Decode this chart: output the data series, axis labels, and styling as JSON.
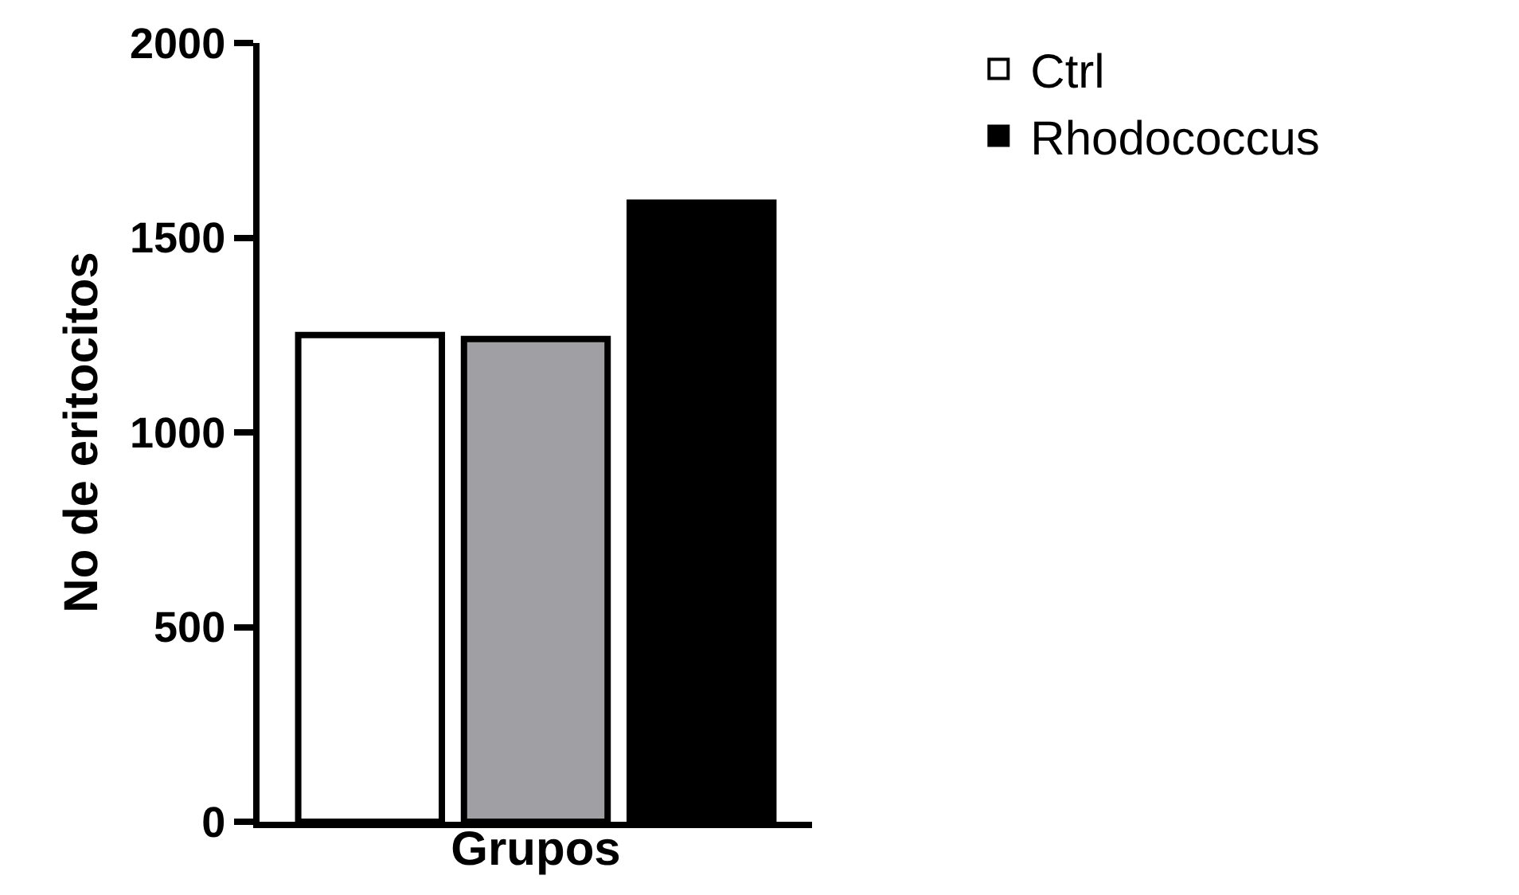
{
  "chart_data": {
    "type": "bar",
    "xlabel": "Grupos",
    "ylabel": "No de eritocitos",
    "categories": [
      null
    ],
    "series": [
      {
        "name": "Ctrl",
        "color": "#ffffff",
        "values": [
          1250
        ]
      },
      {
        "color": "#a0a0a4",
        "values": [
          1240
        ]
      },
      {
        "name": "Rhodococcus",
        "color": "#000000",
        "values": [
          1590
        ]
      }
    ],
    "ylim": [
      0,
      2000
    ],
    "yticks": [
      0,
      500,
      1000,
      1500,
      2000
    ],
    "legend": "top right",
    "tick_labels": "y"
  }
}
